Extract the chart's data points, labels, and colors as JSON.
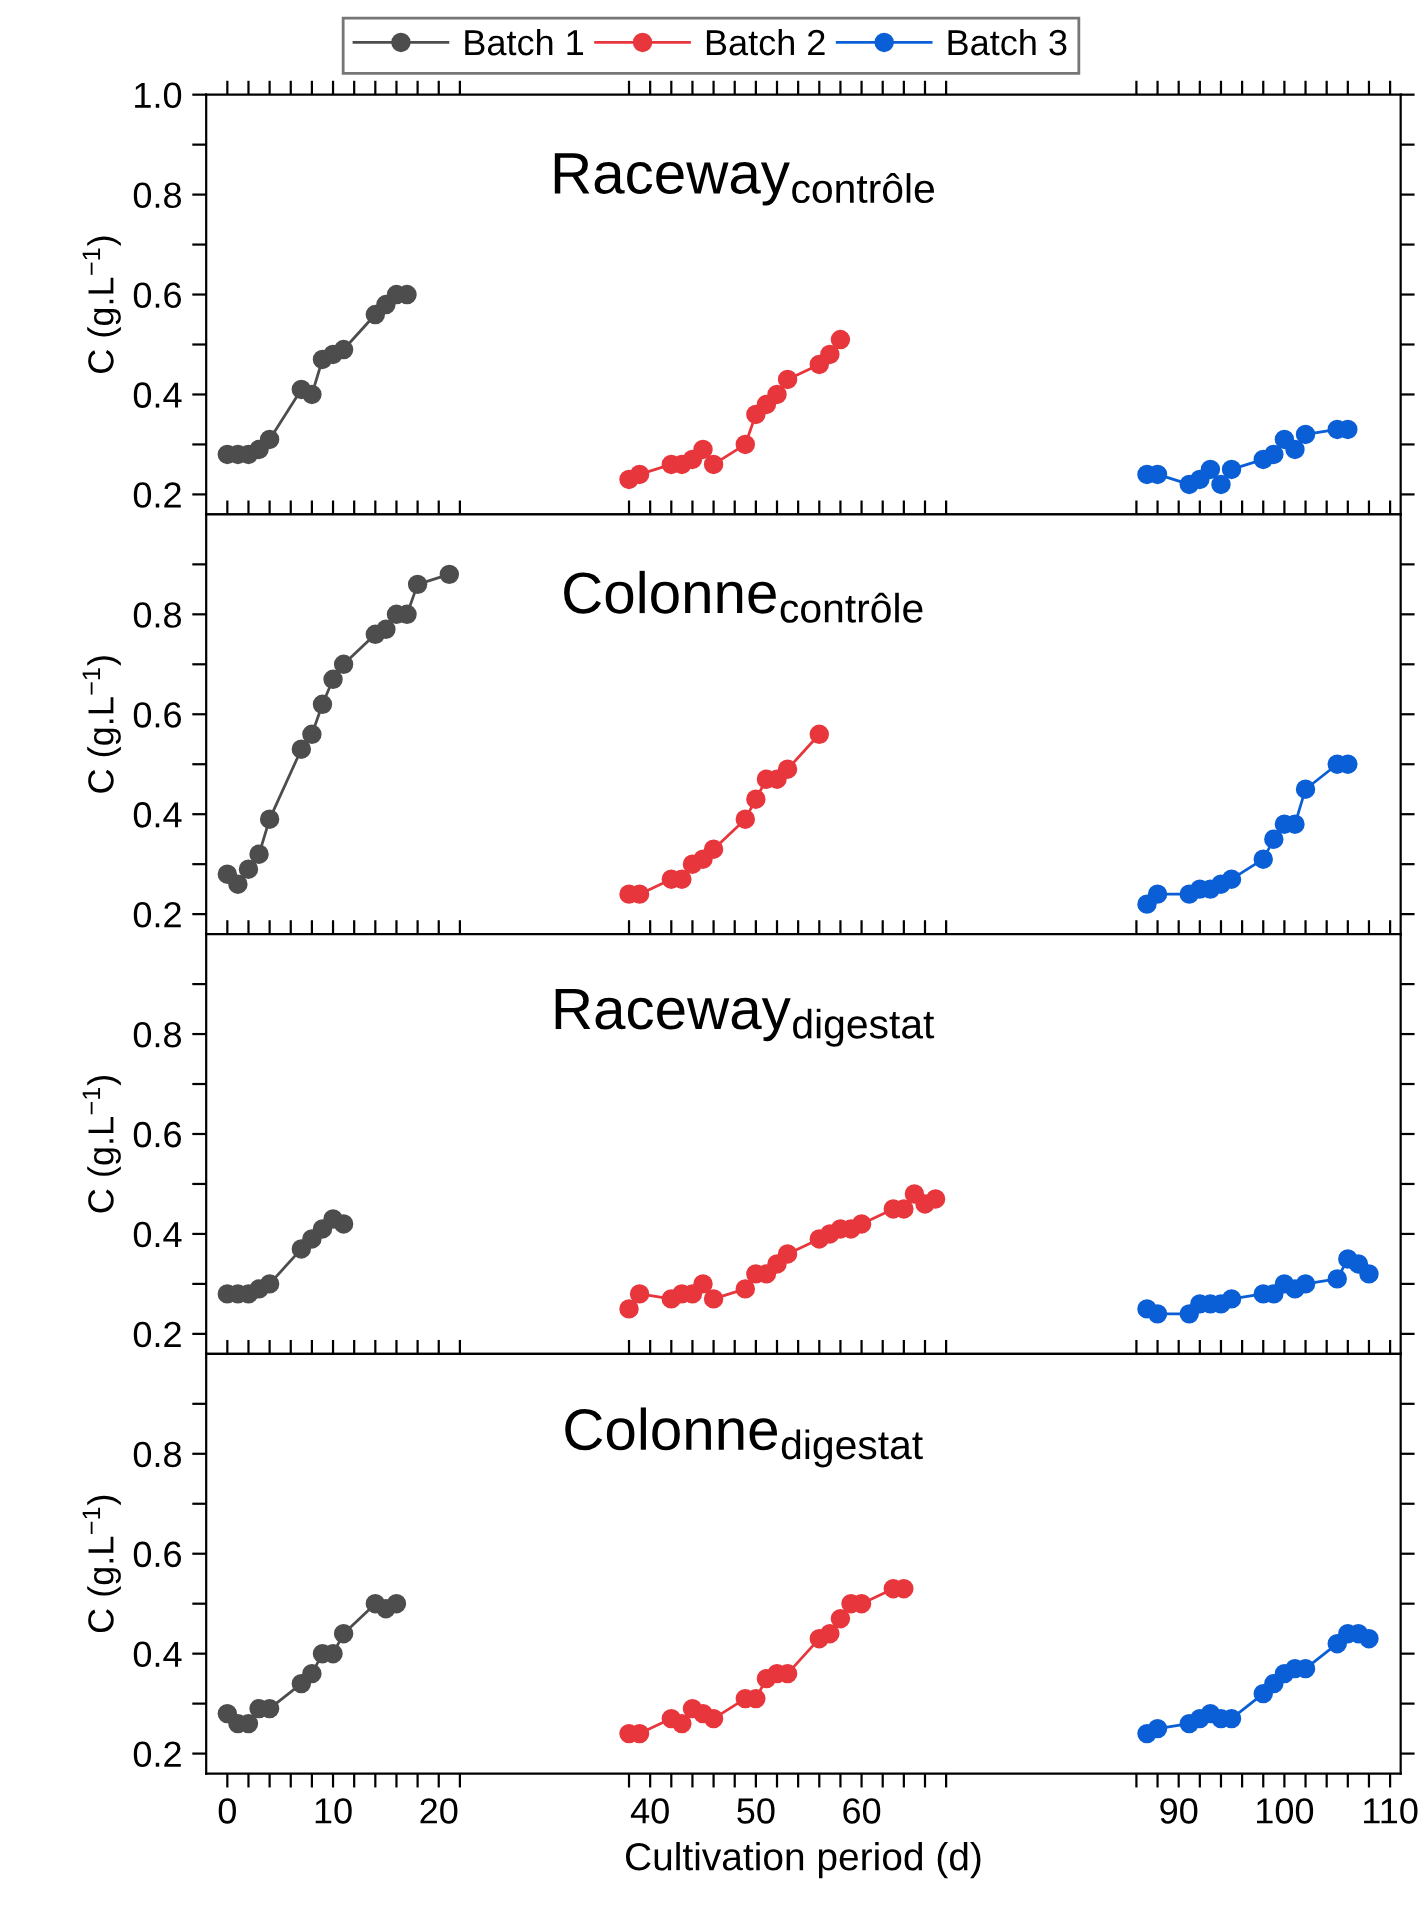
{
  "chart_data": [
    {
      "type": "line",
      "title": "Raceway$_{contrôle}$",
      "ylabel": "C (g.L$^{−1}$)",
      "legend": "top",
      "marker": "circle",
      "tick_labels": "y",
      "xlim": [
        -2,
        111
      ],
      "ylim": [
        0.16,
        1.0
      ],
      "xticks": [
        0,
        {
          "value": 2,
          "label": null
        },
        {
          "value": 4,
          "label": null
        },
        {
          "value": 6,
          "label": null
        },
        {
          "value": 8,
          "label": null
        },
        10,
        {
          "value": 12,
          "label": null
        },
        {
          "value": 14,
          "label": null
        },
        {
          "value": 16,
          "label": null
        },
        {
          "value": 18,
          "label": null
        },
        20,
        {
          "value": 22,
          "label": null
        },
        {
          "value": 38,
          "label": null
        },
        40,
        {
          "value": 42,
          "label": null
        },
        {
          "value": 44,
          "label": null
        },
        {
          "value": 46,
          "label": null
        },
        {
          "value": 48,
          "label": null
        },
        50,
        {
          "value": 52,
          "label": null
        },
        {
          "value": 54,
          "label": null
        },
        {
          "value": 56,
          "label": null
        },
        {
          "value": 58,
          "label": null
        },
        60,
        {
          "value": 62,
          "label": null
        },
        {
          "value": 64,
          "label": null
        },
        {
          "value": 66,
          "label": null
        },
        {
          "value": 68,
          "label": null
        },
        {
          "value": 86,
          "label": null
        },
        {
          "value": 88,
          "label": null
        },
        90,
        {
          "value": 92,
          "label": null
        },
        {
          "value": 94,
          "label": null
        },
        {
          "value": 96,
          "label": null
        },
        {
          "value": 98,
          "label": null
        },
        100,
        {
          "value": 102,
          "label": null
        },
        {
          "value": 104,
          "label": null
        },
        {
          "value": 106,
          "label": null
        },
        {
          "value": 108,
          "label": null
        },
        110
      ],
      "yticks": [
        {
          "value": 0.2,
          "label": "0.2"
        },
        {
          "value": 0.3,
          "label": null
        },
        {
          "value": 0.4,
          "label": "0.4"
        },
        {
          "value": 0.5,
          "label": null
        },
        {
          "value": 0.6,
          "label": "0.6"
        },
        {
          "value": 0.7,
          "label": null
        },
        {
          "value": 0.8,
          "label": "0.8"
        },
        {
          "value": 0.9,
          "label": null
        },
        {
          "value": 1.0,
          "label": "1.0"
        }
      ],
      "series": [
        {
          "name": "Batch 1",
          "color": "#4d4d4d",
          "x": [
            0,
            1,
            2,
            3,
            4,
            7,
            8,
            9,
            10,
            11,
            14,
            15,
            16,
            17
          ],
          "values": [
            0.28,
            0.28,
            0.28,
            0.29,
            0.31,
            0.41,
            0.4,
            0.47,
            0.48,
            0.49,
            0.56,
            0.58,
            0.6,
            0.6
          ]
        },
        {
          "name": "Batch 2",
          "color": "#e8363d",
          "x": [
            38,
            39,
            42,
            43,
            44,
            45,
            46,
            49,
            50,
            51,
            52,
            53,
            56,
            57,
            58
          ],
          "values": [
            0.23,
            0.24,
            0.26,
            0.26,
            0.27,
            0.29,
            0.26,
            0.3,
            0.36,
            0.38,
            0.4,
            0.43,
            0.46,
            0.48,
            0.51
          ]
        },
        {
          "name": "Batch 3",
          "color": "#0a5fd6",
          "x": [
            87,
            88,
            91,
            92,
            93,
            94,
            95,
            98,
            99,
            100,
            101,
            102,
            105,
            106
          ],
          "values": [
            0.24,
            0.24,
            0.22,
            0.23,
            0.25,
            0.22,
            0.25,
            0.27,
            0.28,
            0.31,
            0.29,
            0.32,
            0.33,
            0.33
          ]
        }
      ]
    },
    {
      "type": "line",
      "title": "Colonne$_{contrôle}$",
      "ylabel": "C (g.L$^{−1}$)",
      "marker": "circle",
      "tick_labels": "y",
      "xlim": [
        -2,
        111
      ],
      "ylim": [
        0.16,
        1.0
      ],
      "xticks": [
        0,
        {
          "value": 2,
          "label": null
        },
        {
          "value": 4,
          "label": null
        },
        {
          "value": 6,
          "label": null
        },
        {
          "value": 8,
          "label": null
        },
        10,
        {
          "value": 12,
          "label": null
        },
        {
          "value": 14,
          "label": null
        },
        {
          "value": 16,
          "label": null
        },
        {
          "value": 18,
          "label": null
        },
        20,
        {
          "value": 22,
          "label": null
        },
        {
          "value": 38,
          "label": null
        },
        40,
        {
          "value": 42,
          "label": null
        },
        {
          "value": 44,
          "label": null
        },
        {
          "value": 46,
          "label": null
        },
        {
          "value": 48,
          "label": null
        },
        50,
        {
          "value": 52,
          "label": null
        },
        {
          "value": 54,
          "label": null
        },
        {
          "value": 56,
          "label": null
        },
        {
          "value": 58,
          "label": null
        },
        60,
        {
          "value": 62,
          "label": null
        },
        {
          "value": 64,
          "label": null
        },
        {
          "value": 66,
          "label": null
        },
        {
          "value": 68,
          "label": null
        },
        {
          "value": 86,
          "label": null
        },
        {
          "value": 88,
          "label": null
        },
        90,
        {
          "value": 92,
          "label": null
        },
        {
          "value": 94,
          "label": null
        },
        {
          "value": 96,
          "label": null
        },
        {
          "value": 98,
          "label": null
        },
        100,
        {
          "value": 102,
          "label": null
        },
        {
          "value": 104,
          "label": null
        },
        {
          "value": 106,
          "label": null
        },
        {
          "value": 108,
          "label": null
        },
        110
      ],
      "yticks": [
        {
          "value": 0.2,
          "label": "0.2"
        },
        {
          "value": 0.3,
          "label": null
        },
        {
          "value": 0.4,
          "label": "0.4"
        },
        {
          "value": 0.5,
          "label": null
        },
        {
          "value": 0.6,
          "label": "0.6"
        },
        {
          "value": 0.7,
          "label": null
        },
        {
          "value": 0.8,
          "label": "0.8"
        },
        {
          "value": 0.9,
          "label": null
        }
      ],
      "series": [
        {
          "color": "#4d4d4d",
          "x": [
            0,
            1,
            2,
            3,
            4,
            7,
            8,
            9,
            10,
            11,
            14,
            15,
            16,
            17,
            18,
            21
          ],
          "values": [
            0.28,
            0.26,
            0.29,
            0.32,
            0.39,
            0.53,
            0.56,
            0.62,
            0.67,
            0.7,
            0.76,
            0.77,
            0.8,
            0.8,
            0.86,
            0.88
          ]
        },
        {
          "color": "#e8363d",
          "x": [
            38,
            39,
            42,
            43,
            44,
            45,
            46,
            49,
            50,
            51,
            52,
            53,
            56
          ],
          "values": [
            0.24,
            0.24,
            0.27,
            0.27,
            0.3,
            0.31,
            0.33,
            0.39,
            0.43,
            0.47,
            0.47,
            0.49,
            0.56
          ]
        },
        {
          "color": "#0a5fd6",
          "x": [
            87,
            88,
            91,
            92,
            93,
            94,
            95,
            98,
            99,
            100,
            101,
            102,
            105,
            106
          ],
          "values": [
            0.22,
            0.24,
            0.24,
            0.25,
            0.25,
            0.26,
            0.27,
            0.31,
            0.35,
            0.38,
            0.38,
            0.45,
            0.5,
            0.5
          ]
        }
      ]
    },
    {
      "type": "line",
      "title": "Raceway$_{digestat}$",
      "ylabel": "C (g.L$^{−1}$)",
      "marker": "circle",
      "tick_labels": "y",
      "xlim": [
        -2,
        111
      ],
      "ylim": [
        0.16,
        1.0
      ],
      "xticks": [
        0,
        {
          "value": 2,
          "label": null
        },
        {
          "value": 4,
          "label": null
        },
        {
          "value": 6,
          "label": null
        },
        {
          "value": 8,
          "label": null
        },
        10,
        {
          "value": 12,
          "label": null
        },
        {
          "value": 14,
          "label": null
        },
        {
          "value": 16,
          "label": null
        },
        {
          "value": 18,
          "label": null
        },
        20,
        {
          "value": 22,
          "label": null
        },
        {
          "value": 38,
          "label": null
        },
        40,
        {
          "value": 42,
          "label": null
        },
        {
          "value": 44,
          "label": null
        },
        {
          "value": 46,
          "label": null
        },
        {
          "value": 48,
          "label": null
        },
        50,
        {
          "value": 52,
          "label": null
        },
        {
          "value": 54,
          "label": null
        },
        {
          "value": 56,
          "label": null
        },
        {
          "value": 58,
          "label": null
        },
        60,
        {
          "value": 62,
          "label": null
        },
        {
          "value": 64,
          "label": null
        },
        {
          "value": 66,
          "label": null
        },
        {
          "value": 68,
          "label": null
        },
        {
          "value": 86,
          "label": null
        },
        {
          "value": 88,
          "label": null
        },
        90,
        {
          "value": 92,
          "label": null
        },
        {
          "value": 94,
          "label": null
        },
        {
          "value": 96,
          "label": null
        },
        {
          "value": 98,
          "label": null
        },
        100,
        {
          "value": 102,
          "label": null
        },
        {
          "value": 104,
          "label": null
        },
        {
          "value": 106,
          "label": null
        },
        {
          "value": 108,
          "label": null
        },
        110
      ],
      "yticks": [
        {
          "value": 0.2,
          "label": "0.2"
        },
        {
          "value": 0.3,
          "label": null
        },
        {
          "value": 0.4,
          "label": "0.4"
        },
        {
          "value": 0.5,
          "label": null
        },
        {
          "value": 0.6,
          "label": "0.6"
        },
        {
          "value": 0.7,
          "label": null
        },
        {
          "value": 0.8,
          "label": "0.8"
        },
        {
          "value": 0.9,
          "label": null
        }
      ],
      "series": [
        {
          "color": "#4d4d4d",
          "x": [
            0,
            1,
            2,
            3,
            4,
            7,
            8,
            9,
            10,
            11
          ],
          "values": [
            0.28,
            0.28,
            0.28,
            0.29,
            0.3,
            0.37,
            0.39,
            0.41,
            0.43,
            0.42
          ]
        },
        {
          "color": "#e8363d",
          "x": [
            38,
            39,
            42,
            43,
            44,
            45,
            46,
            49,
            50,
            51,
            52,
            53,
            56,
            57,
            58,
            59,
            60,
            63,
            64,
            65,
            66,
            67
          ],
          "values": [
            0.25,
            0.28,
            0.27,
            0.28,
            0.28,
            0.3,
            0.27,
            0.29,
            0.32,
            0.32,
            0.34,
            0.36,
            0.39,
            0.4,
            0.41,
            0.41,
            0.42,
            0.45,
            0.45,
            0.48,
            0.46,
            0.47
          ]
        },
        {
          "color": "#0a5fd6",
          "x": [
            87,
            88,
            91,
            92,
            93,
            94,
            95,
            98,
            99,
            100,
            101,
            102,
            105,
            106,
            107,
            108
          ],
          "values": [
            0.25,
            0.24,
            0.24,
            0.26,
            0.26,
            0.26,
            0.27,
            0.28,
            0.28,
            0.3,
            0.29,
            0.3,
            0.31,
            0.35,
            0.34,
            0.32
          ]
        }
      ]
    },
    {
      "type": "line",
      "title": "Colonne$_{digestat}$",
      "xlabel": "Cultivation period (d)",
      "ylabel": "C (g.L$^{−1}$)",
      "marker": "circle",
      "xlim": [
        -2,
        111
      ],
      "ylim": [
        0.16,
        1.0
      ],
      "xticks": [
        0,
        {
          "value": 2,
          "label": null
        },
        {
          "value": 4,
          "label": null
        },
        {
          "value": 6,
          "label": null
        },
        {
          "value": 8,
          "label": null
        },
        10,
        {
          "value": 12,
          "label": null
        },
        {
          "value": 14,
          "label": null
        },
        {
          "value": 16,
          "label": null
        },
        {
          "value": 18,
          "label": null
        },
        20,
        {
          "value": 22,
          "label": null
        },
        {
          "value": 38,
          "label": null
        },
        40,
        {
          "value": 42,
          "label": null
        },
        {
          "value": 44,
          "label": null
        },
        {
          "value": 46,
          "label": null
        },
        {
          "value": 48,
          "label": null
        },
        50,
        {
          "value": 52,
          "label": null
        },
        {
          "value": 54,
          "label": null
        },
        {
          "value": 56,
          "label": null
        },
        {
          "value": 58,
          "label": null
        },
        60,
        {
          "value": 62,
          "label": null
        },
        {
          "value": 64,
          "label": null
        },
        {
          "value": 66,
          "label": null
        },
        {
          "value": 68,
          "label": null
        },
        {
          "value": 86,
          "label": null
        },
        {
          "value": 88,
          "label": null
        },
        90,
        {
          "value": 92,
          "label": null
        },
        {
          "value": 94,
          "label": null
        },
        {
          "value": 96,
          "label": null
        },
        {
          "value": 98,
          "label": null
        },
        100,
        {
          "value": 102,
          "label": null
        },
        {
          "value": 104,
          "label": null
        },
        {
          "value": 106,
          "label": null
        },
        {
          "value": 108,
          "label": null
        },
        110
      ],
      "yticks": [
        {
          "value": 0.2,
          "label": "0.2"
        },
        {
          "value": 0.3,
          "label": null
        },
        {
          "value": 0.4,
          "label": "0.4"
        },
        {
          "value": 0.5,
          "label": null
        },
        {
          "value": 0.6,
          "label": "0.6"
        },
        {
          "value": 0.7,
          "label": null
        },
        {
          "value": 0.8,
          "label": "0.8"
        },
        {
          "value": 0.9,
          "label": null
        }
      ],
      "series": [
        {
          "color": "#4d4d4d",
          "x": [
            0,
            1,
            2,
            3,
            4,
            7,
            8,
            9,
            10,
            11,
            14,
            15,
            16
          ],
          "values": [
            0.28,
            0.26,
            0.26,
            0.29,
            0.29,
            0.34,
            0.36,
            0.4,
            0.4,
            0.44,
            0.5,
            0.49,
            0.5
          ]
        },
        {
          "color": "#e8363d",
          "x": [
            38,
            39,
            42,
            43,
            44,
            45,
            46,
            49,
            50,
            51,
            52,
            53,
            56,
            57,
            58,
            59,
            60,
            63,
            64
          ],
          "values": [
            0.24,
            0.24,
            0.27,
            0.26,
            0.29,
            0.28,
            0.27,
            0.31,
            0.31,
            0.35,
            0.36,
            0.36,
            0.43,
            0.44,
            0.47,
            0.5,
            0.5,
            0.53,
            0.53
          ]
        },
        {
          "color": "#0a5fd6",
          "x": [
            87,
            88,
            91,
            92,
            93,
            94,
            95,
            98,
            99,
            100,
            101,
            102,
            105,
            106,
            107,
            108
          ],
          "values": [
            0.24,
            0.25,
            0.26,
            0.27,
            0.28,
            0.27,
            0.27,
            0.32,
            0.34,
            0.36,
            0.37,
            0.37,
            0.42,
            0.44,
            0.44,
            0.43
          ]
        }
      ]
    }
  ]
}
